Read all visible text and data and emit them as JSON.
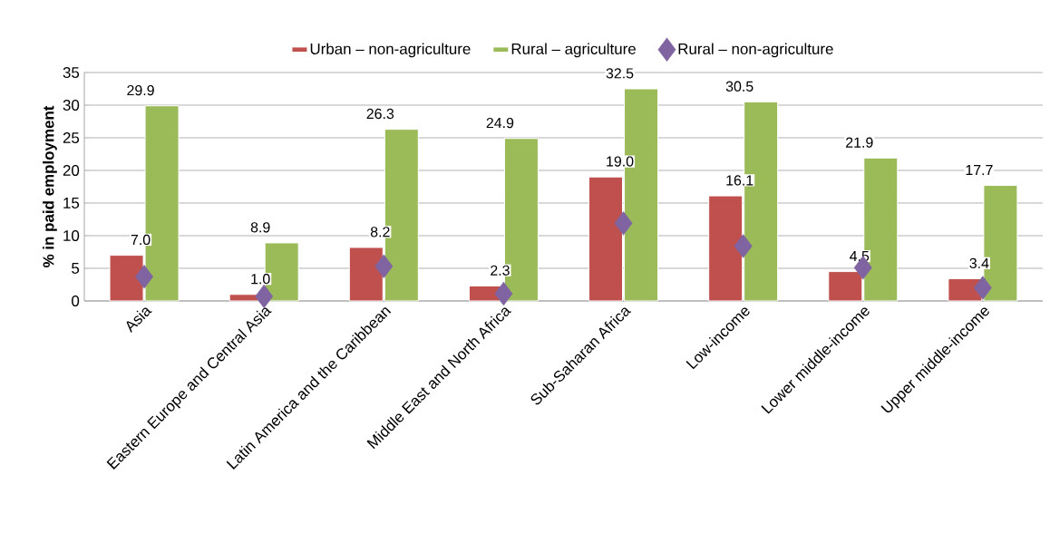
{
  "chart_data": {
    "type": "bar",
    "ylabel": "% in paid employment",
    "categories": [
      "Asia",
      "Eastern Europe and Central Asia",
      "Latin America and the Caribbean",
      "Middle East and North Africa",
      "Sub-Saharan Africa",
      "Low-income",
      "Lower middle-income",
      "Upper middle-income"
    ],
    "series": [
      {
        "name": "Urban – non-agriculture",
        "color": "#c0504d",
        "values": [
          7.0,
          1.0,
          8.2,
          2.3,
          19.0,
          16.1,
          4.5,
          3.4
        ],
        "value_labels": [
          "7.0",
          "1.0",
          "8.2",
          "2.3",
          "19.0",
          "16.1",
          "4.5",
          "3.4"
        ]
      },
      {
        "name": "Rural – agriculture",
        "color": "#9bbb59",
        "values": [
          29.9,
          8.9,
          26.3,
          24.9,
          32.5,
          30.5,
          21.9,
          17.7
        ],
        "value_labels": [
          "29.9",
          "8.9",
          "26.3",
          "24.9",
          "32.5",
          "30.5",
          "21.9",
          "17.7"
        ]
      },
      {
        "name": "Rural – non-agriculture",
        "type": "scatter",
        "marker": "diamond",
        "color": "#8064a2",
        "values": [
          3.7,
          0.7,
          5.3,
          1.1,
          11.9,
          8.4,
          5.1,
          2.0
        ]
      }
    ],
    "ylim": [
      0,
      35
    ],
    "yticks": [
      0,
      5,
      10,
      15,
      20,
      25,
      30,
      35
    ],
    "grid": "y",
    "legend": "top"
  }
}
